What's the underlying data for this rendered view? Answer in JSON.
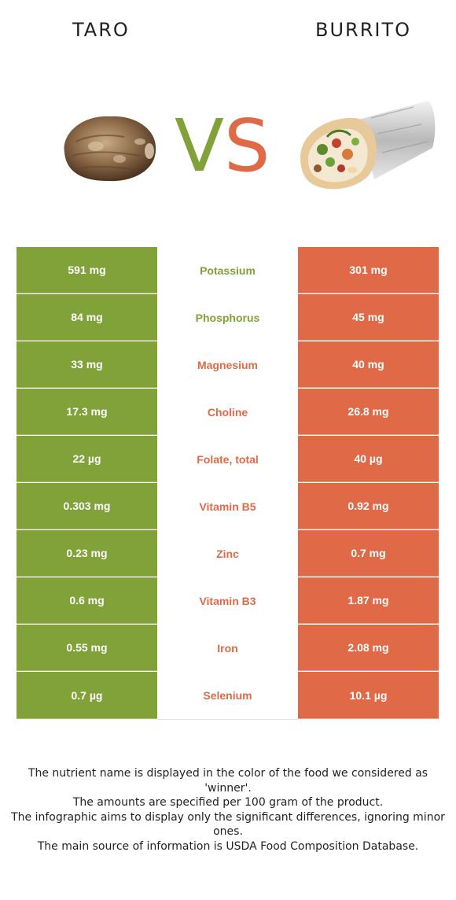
{
  "left_food": {
    "name": "TARO",
    "color": "#80a238"
  },
  "right_food": {
    "name": "BURRITO",
    "color": "#e06a48"
  },
  "vs": {
    "v": "V",
    "s": "S"
  },
  "rows": [
    {
      "nutrient": "Potassium",
      "left": "591 mg",
      "right": "301 mg",
      "winner": "left"
    },
    {
      "nutrient": "Phosphorus",
      "left": "84 mg",
      "right": "45 mg",
      "winner": "left"
    },
    {
      "nutrient": "Magnesium",
      "left": "33 mg",
      "right": "40 mg",
      "winner": "right"
    },
    {
      "nutrient": "Choline",
      "left": "17.3 mg",
      "right": "26.8 mg",
      "winner": "right"
    },
    {
      "nutrient": "Folate, total",
      "left": "22 µg",
      "right": "40 µg",
      "winner": "right"
    },
    {
      "nutrient": "Vitamin B5",
      "left": "0.303 mg",
      "right": "0.92 mg",
      "winner": "right"
    },
    {
      "nutrient": "Zinc",
      "left": "0.23 mg",
      "right": "0.7 mg",
      "winner": "right"
    },
    {
      "nutrient": "Vitamin B3",
      "left": "0.6 mg",
      "right": "1.87 mg",
      "winner": "right"
    },
    {
      "nutrient": "Iron",
      "left": "0.55 mg",
      "right": "2.08 mg",
      "winner": "right"
    },
    {
      "nutrient": "Selenium",
      "left": "0.7 µg",
      "right": "10.1 µg",
      "winner": "right"
    }
  ],
  "notes": [
    "The nutrient name is displayed in the color of the food we considered as 'winner'.",
    "The amounts are specified per 100 gram of the product.",
    "The infographic aims to display only the significant differences, ignoring minor ones.",
    "The main source of information is USDA Food Composition Database."
  ]
}
